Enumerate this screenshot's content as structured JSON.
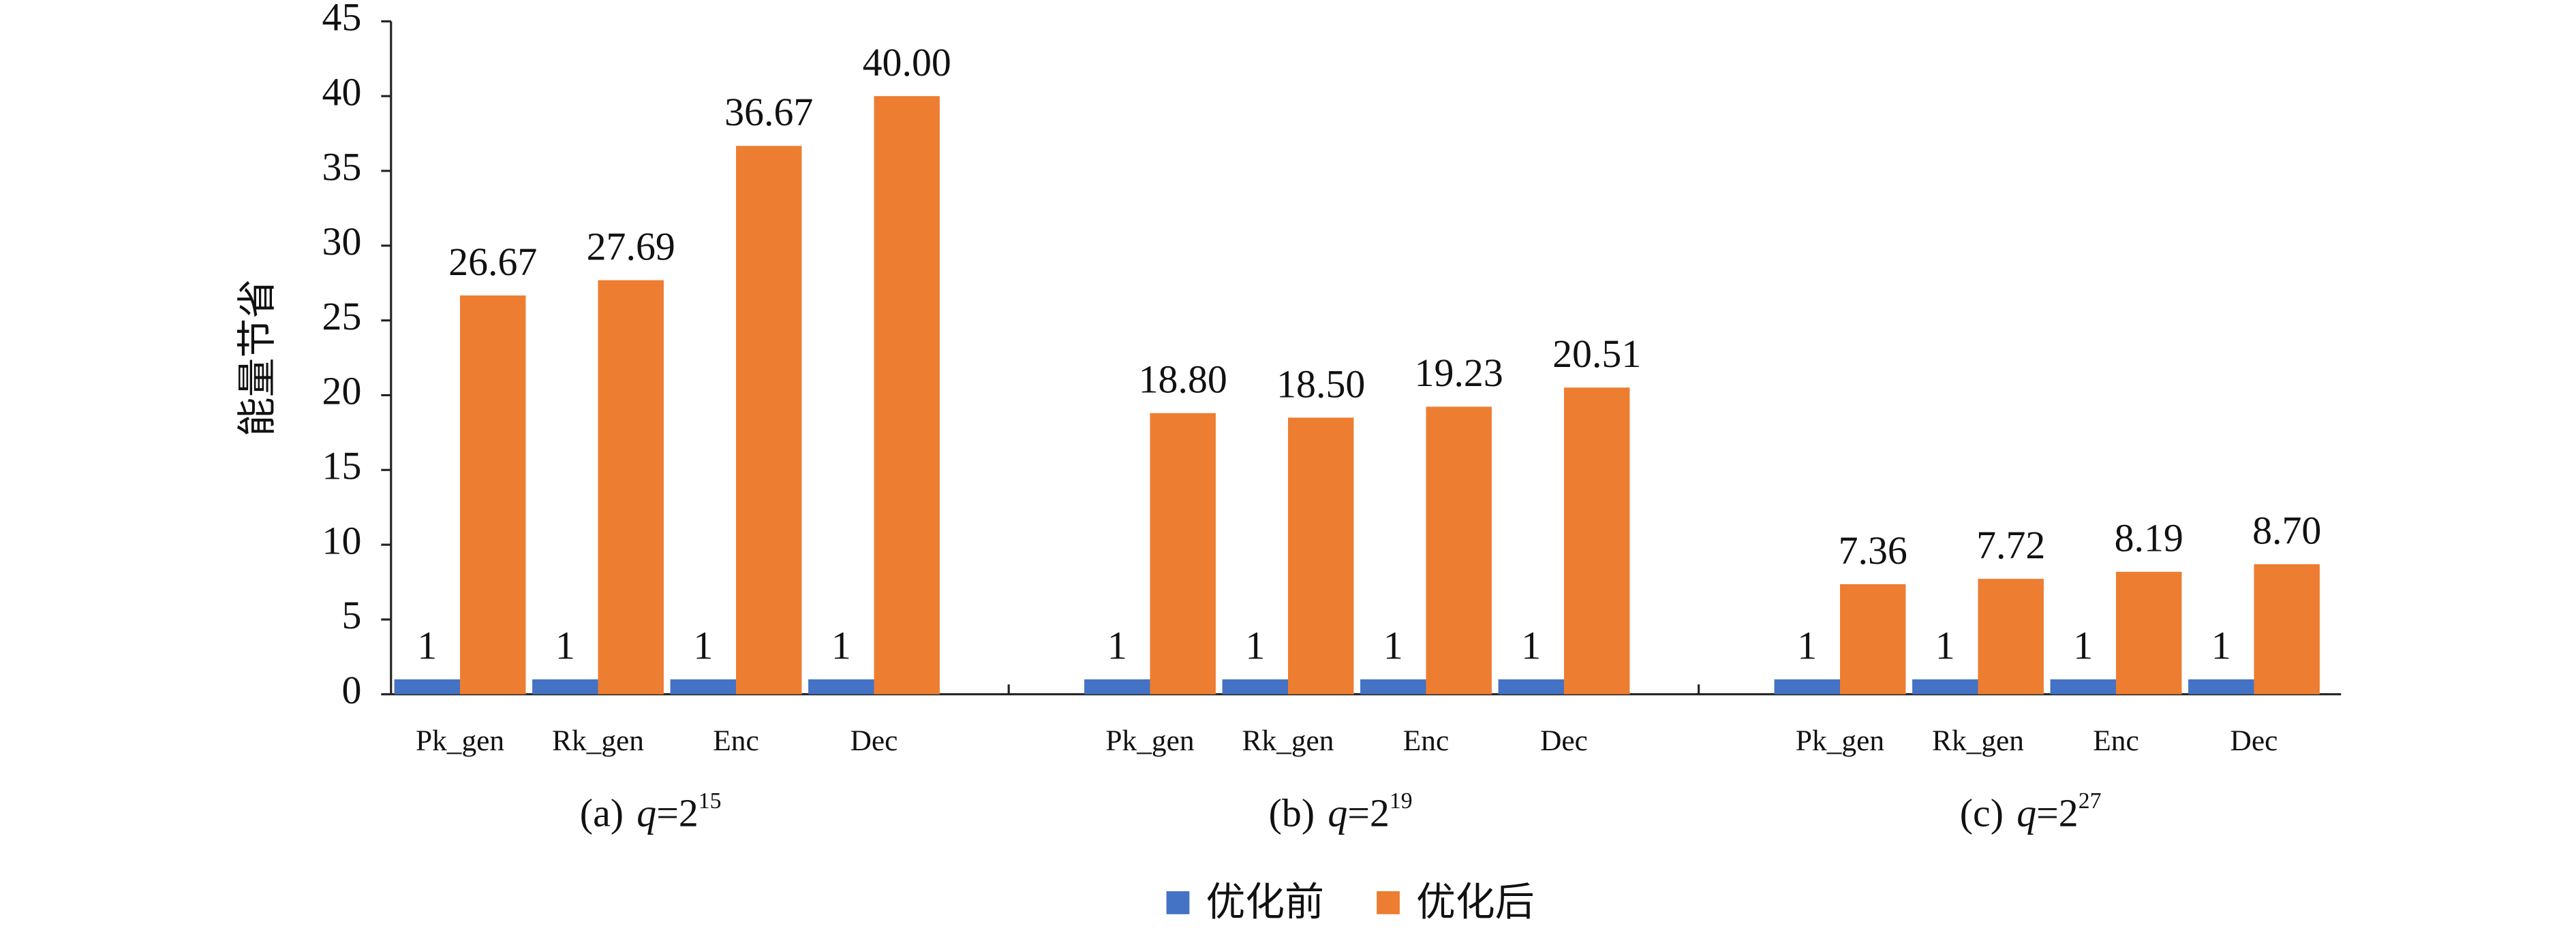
{
  "chart_data": {
    "type": "bar",
    "y_label": "能量节省",
    "categories": [
      "Pk_gen",
      "Rk_gen",
      "Enc",
      "Dec",
      "Pk_gen",
      "Rk_gen",
      "Enc",
      "Dec",
      "Pk_gen",
      "Rk_gen",
      "Enc",
      "Dec"
    ],
    "groups": [
      {
        "label": "(a)",
        "variable": "q",
        "base": "=2",
        "exponent": "15"
      },
      {
        "label": "(b)",
        "variable": "q",
        "base": "=2",
        "exponent": "19"
      },
      {
        "label": "(c)",
        "variable": "q",
        "base": "=2",
        "exponent": "27"
      }
    ],
    "series": [
      {
        "name": "优化前",
        "color": "#4472c4",
        "values": [
          1,
          1,
          1,
          1,
          1,
          1,
          1,
          1,
          1,
          1,
          1,
          1
        ]
      },
      {
        "name": "优化后",
        "color": "#ed7d31",
        "values": [
          26.67,
          27.69,
          36.67,
          40,
          18.8,
          18.5,
          19.23,
          20.51,
          7.36,
          7.72,
          8.19,
          8.7
        ],
        "value_labels": [
          "26.67",
          "27.69",
          "36.67",
          "40.00",
          "18.80",
          "18.50",
          "19.23",
          "20.51",
          "7.36",
          "7.72",
          "8.19",
          "8.70"
        ]
      }
    ],
    "ylim": [
      0,
      45
    ],
    "yticks": [
      0,
      5,
      10,
      15,
      20,
      25,
      30,
      35,
      40,
      45
    ],
    "grid": false
  }
}
